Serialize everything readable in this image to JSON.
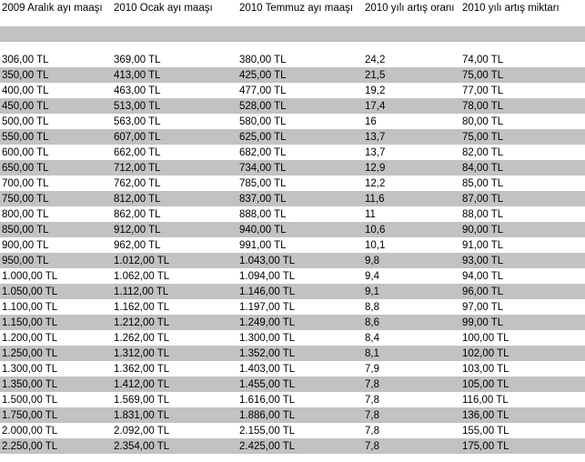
{
  "styles": {
    "alt_row_color": "#c2c2c2",
    "text_color": "#000000",
    "background_color": "#ffffff"
  },
  "table": {
    "headers": [
      "2009 Aralık ayı maaşı",
      "2010 Ocak ayı  maaşı",
      "2010 Temmuz ayı maaşı",
      "2010 yılı artış oranı",
      "2010 yılı artış miktarı"
    ],
    "rows": [
      [
        "306,00 TL",
        "369,00 TL",
        "380,00 TL",
        "24,2",
        "74,00 TL"
      ],
      [
        "350,00 TL",
        "413,00 TL",
        "425,00 TL",
        "21,5",
        "75,00 TL"
      ],
      [
        "400,00 TL",
        "463,00 TL",
        "477,00 TL",
        "19,2",
        "77,00 TL"
      ],
      [
        "450,00 TL",
        "513,00 TL",
        "528,00 TL",
        "17,4",
        "78,00 TL"
      ],
      [
        "500,00 TL",
        "563,00 TL",
        "580,00 TL",
        "16",
        "80,00 TL"
      ],
      [
        "550,00 TL",
        "607,00 TL",
        "625,00 TL",
        "13,7",
        "75,00 TL"
      ],
      [
        "600,00 TL",
        "662,00 TL",
        "682,00 TL",
        "13,7",
        "82,00 TL"
      ],
      [
        "650,00 TL",
        "712,00 TL",
        "734,00 TL",
        "12,9",
        "84,00 TL"
      ],
      [
        "700,00 TL",
        "762,00 TL",
        "785,00 TL",
        "12,2",
        "85,00 TL"
      ],
      [
        "750,00 TL",
        "812,00 TL",
        "837,00 TL",
        "11,6",
        "87,00 TL"
      ],
      [
        "800,00 TL",
        "862,00 TL",
        "888,00 TL",
        "11",
        "88,00 TL"
      ],
      [
        "850,00 TL",
        "912,00 TL",
        "940,00 TL",
        "10,6",
        "90,00 TL"
      ],
      [
        "900,00 TL",
        "962,00 TL",
        "991,00 TL",
        "10,1",
        "91,00 TL"
      ],
      [
        "950,00 TL",
        "1.012,00 TL",
        "1.043,00 TL",
        "9,8",
        "93,00 TL"
      ],
      [
        "1.000,00 TL",
        "1.062,00 TL",
        "1.094,00 TL",
        "9,4",
        "94,00 TL"
      ],
      [
        "1.050,00 TL",
        "1.112,00 TL",
        "1.146,00 TL",
        "9,1",
        "96,00 TL"
      ],
      [
        "1.100,00 TL",
        "1.162,00 TL",
        "1.197,00 TL",
        "8,8",
        "97,00 TL"
      ],
      [
        "1.150,00 TL",
        "1.212,00 TL",
        "1.249,00 TL",
        "8,6",
        "99,00 TL"
      ],
      [
        "1.200,00 TL",
        "1.262,00 TL",
        "1.300,00 TL",
        "8,4",
        "100,00 TL"
      ],
      [
        "1.250,00 TL",
        "1.312,00 TL",
        "1.352,00 TL",
        "8,1",
        "102,00 TL"
      ],
      [
        "1.300,00 TL",
        "1.362,00 TL",
        "1.403,00 TL",
        "7,9",
        "103,00 TL"
      ],
      [
        "1.350,00 TL",
        "1.412,00 TL",
        "1.455,00 TL",
        "7,8",
        "105,00 TL"
      ],
      [
        "1.500,00 TL",
        "1.569,00 TL",
        "1.616,00 TL",
        "7,8",
        "116,00 TL"
      ],
      [
        "1.750,00 TL",
        "1.831,00 TL",
        "1.886,00 TL",
        "7,8",
        "136,00 TL"
      ],
      [
        "2.000,00 TL",
        "2.092,00 TL",
        "2.155,00 TL",
        "7,8",
        "155,00 TL"
      ],
      [
        "2.250,00 TL",
        "2.354,00 TL",
        "2.425,00 TL",
        "7,8",
        "175,00 TL"
      ]
    ]
  }
}
